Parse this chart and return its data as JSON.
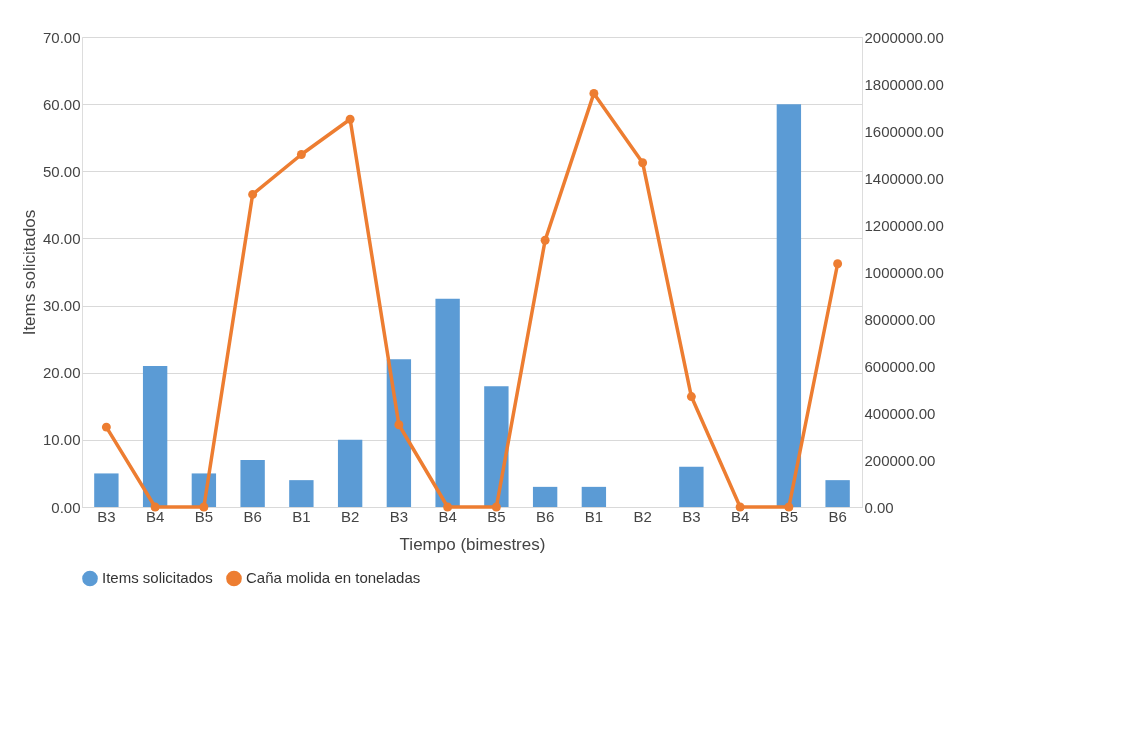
{
  "chart_data": {
    "type": "bar",
    "xlabel": "Tiempo (bimestres)",
    "ylabel": "Items solicitados",
    "categories": [
      "B3",
      "B4",
      "B5",
      "B6",
      "B1",
      "B2",
      "B3",
      "B4",
      "B5",
      "B6",
      "B1",
      "B2",
      "B3",
      "B4",
      "B5",
      "B6"
    ],
    "series": [
      {
        "name": "Items solicitados",
        "color": "#5b9bd5",
        "values": [
          5,
          21,
          5,
          7,
          4,
          10,
          22,
          31,
          18,
          3,
          3,
          0,
          6,
          0,
          60,
          4
        ]
      },
      {
        "name": "Caña molida en toneladas",
        "type": "line",
        "axis": "y2",
        "color": "#ed7d31",
        "marker": "circle",
        "line_style": "solid",
        "values": [
          340000,
          0,
          0,
          1330000,
          1500000,
          1650000,
          350000,
          0,
          0,
          1135000,
          1760000,
          1465000,
          470000,
          0,
          0,
          1035000
        ]
      }
    ],
    "ylim": [
      0,
      70
    ],
    "yticks": [
      {
        "value": 0,
        "label": "0.00"
      },
      {
        "value": 10,
        "label": "10.00"
      },
      {
        "value": 20,
        "label": "20.00"
      },
      {
        "value": 30,
        "label": "30.00"
      },
      {
        "value": 40,
        "label": "40.00"
      },
      {
        "value": 50,
        "label": "50.00"
      },
      {
        "value": 60,
        "label": "60.00"
      },
      {
        "value": 70,
        "label": "70.00"
      }
    ],
    "y2lim": [
      0,
      2000000
    ],
    "y2ticks": [
      {
        "value": 0,
        "label": "0.00"
      },
      {
        "value": 200000,
        "label": "200000.00"
      },
      {
        "value": 400000,
        "label": "400000.00"
      },
      {
        "value": 600000,
        "label": "600000.00"
      },
      {
        "value": 800000,
        "label": "800000.00"
      },
      {
        "value": 1000000,
        "label": "1000000.00"
      },
      {
        "value": 1200000,
        "label": "1200000.00"
      },
      {
        "value": 1400000,
        "label": "1400000.00"
      },
      {
        "value": 1600000,
        "label": "1600000.00"
      },
      {
        "value": 1800000,
        "label": "1800000.00"
      },
      {
        "value": 2000000,
        "label": "2000000.00"
      }
    ],
    "grid": "y",
    "legend": "bottom"
  }
}
